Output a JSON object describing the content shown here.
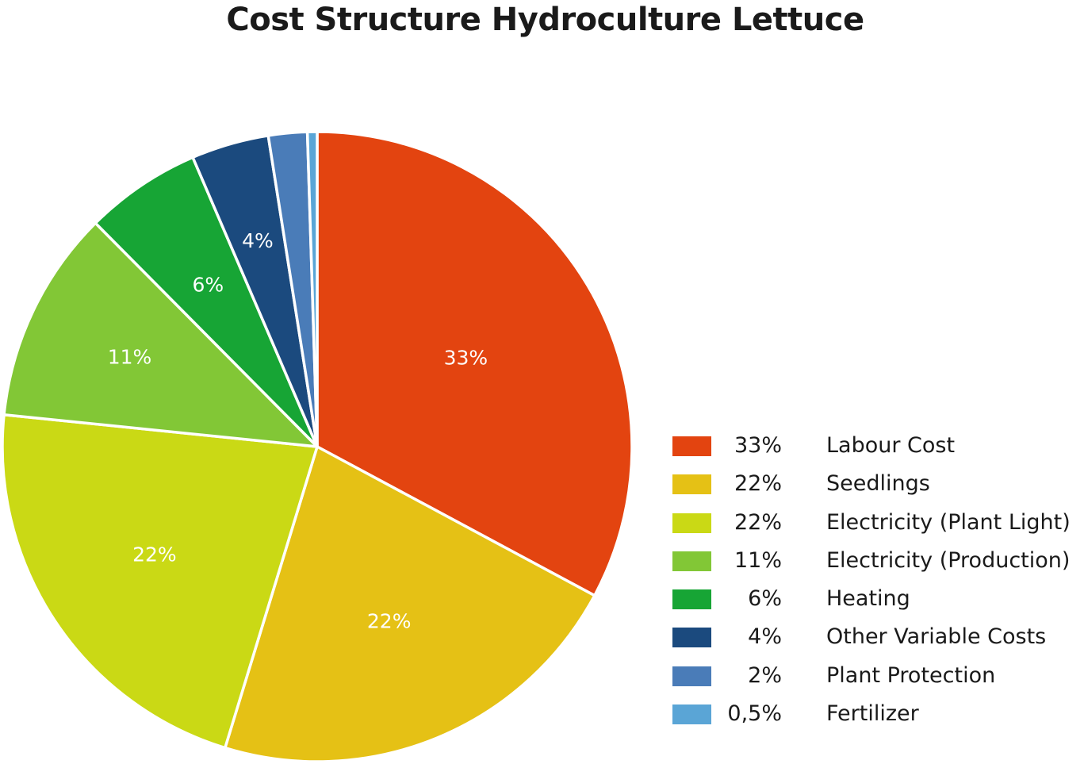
{
  "chart_data": {
    "type": "pie",
    "title": "Cost Structure Hydroculture Lettuce",
    "start_angle_deg": 0,
    "direction": "clockwise",
    "slices": [
      {
        "name": "Labour Cost",
        "value": 33,
        "pct_label": "33%",
        "slice_label": "33%",
        "color": "#e34410"
      },
      {
        "name": "Seedlings",
        "value": 22,
        "pct_label": "22%",
        "slice_label": "22%",
        "color": "#e5c115"
      },
      {
        "name": "Electricity (Plant Light)",
        "value": 22,
        "pct_label": "22%",
        "slice_label": "22%",
        "color": "#cad915"
      },
      {
        "name": "Electricity (Production)",
        "value": 11,
        "pct_label": "11%",
        "slice_label": "11%",
        "color": "#82c736"
      },
      {
        "name": "Heating",
        "value": 6,
        "pct_label": "6%",
        "slice_label": "6%",
        "color": "#17a535"
      },
      {
        "name": "Other Variable Costs",
        "value": 4,
        "pct_label": "4%",
        "slice_label": "4%",
        "color": "#1b4a7e"
      },
      {
        "name": "Plant Protection",
        "value": 2,
        "pct_label": "2%",
        "slice_label": "",
        "color": "#4a7cb8"
      },
      {
        "name": "Fertilizer",
        "value": 0.5,
        "pct_label": "0,5%",
        "slice_label": "",
        "color": "#5aa5d6"
      }
    ],
    "legend_position": "bottom-right"
  }
}
